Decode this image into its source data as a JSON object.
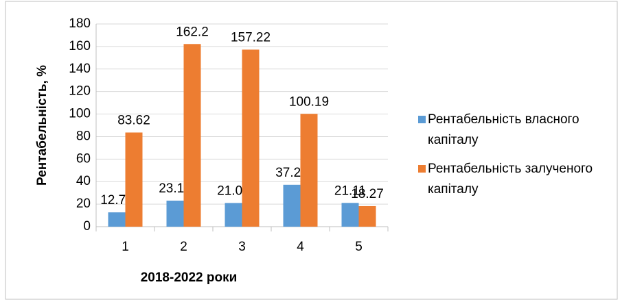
{
  "chart_data": {
    "type": "bar",
    "categories": [
      "1",
      "2",
      "3",
      "4",
      "5"
    ],
    "series": [
      {
        "name": "Рентабельність власного капіталу",
        "color": "#5b9bd5",
        "values": [
          12.71,
          23.12,
          21.04,
          37.21,
          21.11
        ]
      },
      {
        "name": "Рентабельність залученого капіталу",
        "color": "#ed7d31",
        "values": [
          83.62,
          162.2,
          157.22,
          100.19,
          18.27
        ]
      }
    ],
    "x_label": "2018-2022 роки",
    "y_label": "Рентабельність, %",
    "ylim": [
      0,
      180
    ],
    "yticks": [
      0,
      20,
      40,
      60,
      80,
      100,
      120,
      140,
      160,
      180
    ],
    "grid": true,
    "legend": "right"
  }
}
